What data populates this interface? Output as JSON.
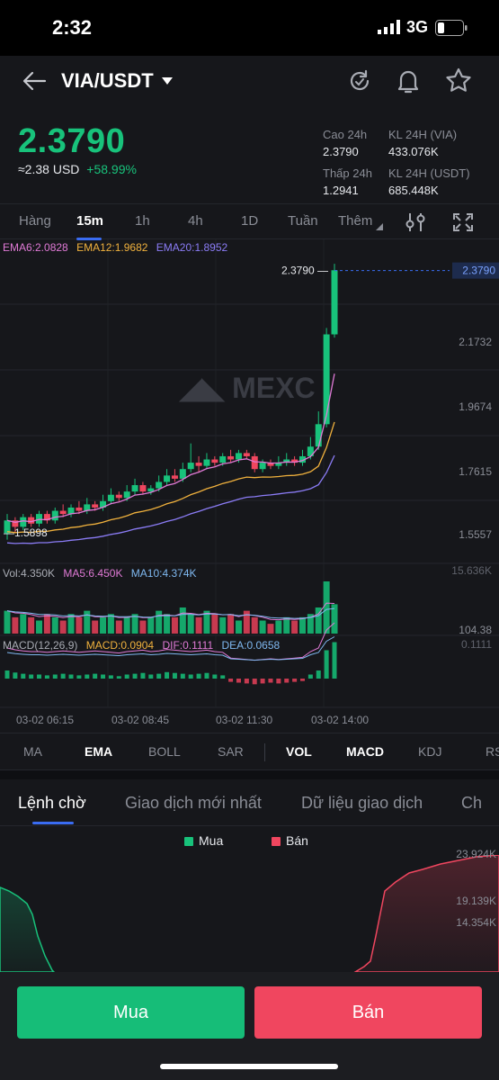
{
  "status_bar": {
    "time": "2:32",
    "network": "3G"
  },
  "header": {
    "pair": "VIA/USDT",
    "icons": [
      "back-arrow-icon",
      "dropdown-caret-icon",
      "refresh-icon",
      "bell-icon",
      "star-icon"
    ]
  },
  "ticker": {
    "last_price": "2.3790",
    "approx": "≈2.38",
    "currency": "USD",
    "change": "+58.99%",
    "high_label": "Cao 24h",
    "high": "2.3790",
    "low_label": "Thấp 24h",
    "low": "1.2941",
    "vol_label": "KL 24H (VIA)",
    "vol": "433.076K",
    "turnover_label": "KL 24H  (USDT)",
    "turnover": "685.448K"
  },
  "intervals": [
    "Hàng",
    "15m",
    "1h",
    "4h",
    "1D",
    "Tuần",
    "Thêm"
  ],
  "active_interval": "15m",
  "chart_data": {
    "type": "candlestick",
    "watermark": "MEXC",
    "ema_labels": {
      "ema6": "EMA6:2.0828",
      "ema12": "EMA12:1.9682",
      "ema20": "EMA20:1.8952"
    },
    "price_axis": [
      "2.1732",
      "1.9674",
      "1.7615",
      "1.5557"
    ],
    "last_price_tag": "2.3790",
    "high_marker": "2.3790",
    "low_marker": "1.5898",
    "ylim": [
      1.48,
      2.42
    ],
    "candles": [
      [
        1.56,
        1.6,
        1.54,
        1.62
      ],
      [
        1.6,
        1.58,
        1.56,
        1.61
      ],
      [
        1.58,
        1.61,
        1.57,
        1.62
      ],
      [
        1.61,
        1.59,
        1.58,
        1.62
      ],
      [
        1.59,
        1.62,
        1.58,
        1.63
      ],
      [
        1.62,
        1.6,
        1.59,
        1.63
      ],
      [
        1.6,
        1.63,
        1.59,
        1.64
      ],
      [
        1.63,
        1.62,
        1.61,
        1.65
      ],
      [
        1.62,
        1.64,
        1.61,
        1.65
      ],
      [
        1.64,
        1.63,
        1.62,
        1.66
      ],
      [
        1.63,
        1.65,
        1.62,
        1.67
      ],
      [
        1.65,
        1.64,
        1.63,
        1.66
      ],
      [
        1.64,
        1.66,
        1.63,
        1.68
      ],
      [
        1.66,
        1.68,
        1.65,
        1.7
      ],
      [
        1.68,
        1.67,
        1.66,
        1.69
      ],
      [
        1.67,
        1.69,
        1.66,
        1.71
      ],
      [
        1.69,
        1.71,
        1.68,
        1.73
      ],
      [
        1.71,
        1.69,
        1.68,
        1.72
      ],
      [
        1.69,
        1.7,
        1.68,
        1.71
      ],
      [
        1.7,
        1.72,
        1.69,
        1.74
      ],
      [
        1.72,
        1.74,
        1.71,
        1.76
      ],
      [
        1.74,
        1.73,
        1.72,
        1.76
      ],
      [
        1.73,
        1.76,
        1.72,
        1.78
      ],
      [
        1.76,
        1.78,
        1.75,
        1.84
      ],
      [
        1.78,
        1.77,
        1.75,
        1.8
      ],
      [
        1.77,
        1.79,
        1.76,
        1.81
      ],
      [
        1.79,
        1.78,
        1.77,
        1.8
      ],
      [
        1.78,
        1.8,
        1.77,
        1.81
      ],
      [
        1.8,
        1.79,
        1.78,
        1.82
      ],
      [
        1.79,
        1.81,
        1.78,
        1.82
      ],
      [
        1.81,
        1.8,
        1.79,
        1.82
      ],
      [
        1.8,
        1.76,
        1.75,
        1.81
      ],
      [
        1.76,
        1.78,
        1.75,
        1.79
      ],
      [
        1.78,
        1.77,
        1.76,
        1.79
      ],
      [
        1.77,
        1.78,
        1.76,
        1.8
      ],
      [
        1.78,
        1.79,
        1.77,
        1.81
      ],
      [
        1.79,
        1.78,
        1.77,
        1.8
      ],
      [
        1.78,
        1.8,
        1.77,
        1.82
      ],
      [
        1.8,
        1.83,
        1.79,
        1.86
      ],
      [
        1.83,
        1.9,
        1.82,
        1.94
      ],
      [
        1.9,
        2.18,
        1.89,
        2.2
      ],
      [
        2.18,
        2.38,
        2.17,
        2.4
      ]
    ],
    "volume_labels": {
      "vol": "Vol:4.350K",
      "ma5": "MA5:6.450K",
      "ma10": "MA10:4.374K",
      "top": "15.636K",
      "bottom": "104.38"
    },
    "volumes": [
      7,
      5,
      6,
      5,
      4,
      6,
      5,
      4,
      6,
      5,
      7,
      4,
      5,
      6,
      4,
      5,
      6,
      4,
      5,
      7,
      6,
      5,
      8,
      6,
      5,
      7,
      6,
      5,
      6,
      4,
      7,
      5,
      4,
      3,
      4,
      5,
      4,
      5,
      6,
      8,
      16,
      9
    ],
    "macd_labels": {
      "name": "MACD(12,26,9)",
      "macd": "MACD:0.0904",
      "dif": "DIF:0.1111",
      "dea": "DEA:0.0658",
      "top": "0.1111"
    },
    "macd_hist": [
      0.02,
      0.015,
      0.012,
      0.01,
      0.01,
      0.008,
      0.01,
      0.012,
      0.01,
      0.008,
      0.01,
      0.012,
      0.01,
      0.008,
      0.006,
      0.01,
      0.012,
      0.014,
      0.01,
      0.012,
      0.016,
      0.014,
      0.012,
      0.01,
      0.012,
      0.014,
      0.01,
      0.008,
      -0.008,
      -0.01,
      -0.012,
      -0.014,
      -0.012,
      -0.01,
      -0.012,
      -0.01,
      -0.008,
      -0.006,
      0.01,
      0.02,
      0.07,
      0.09
    ],
    "time_axis": [
      "03-02 06:15",
      "03-02 08:45",
      "03-02 11:30",
      "03-02 14:00"
    ]
  },
  "indicator_tabs": [
    "MA",
    "EMA",
    "BOLL",
    "SAR",
    "VOL",
    "MACD",
    "KDJ",
    "RSI"
  ],
  "order_tabs": [
    "Lệnh chờ",
    "Giao dịch mới nhất",
    "Dữ liệu giao dịch",
    "Ch"
  ],
  "depth": {
    "buy_label": "Mua",
    "sell_label": "Bán",
    "axis": [
      "23.924K",
      "19.139K",
      "14.354K"
    ],
    "colors": {
      "buy": "#18c27b",
      "sell": "#f0465f"
    }
  },
  "actions": {
    "buy": "Mua",
    "sell": "Bán"
  }
}
